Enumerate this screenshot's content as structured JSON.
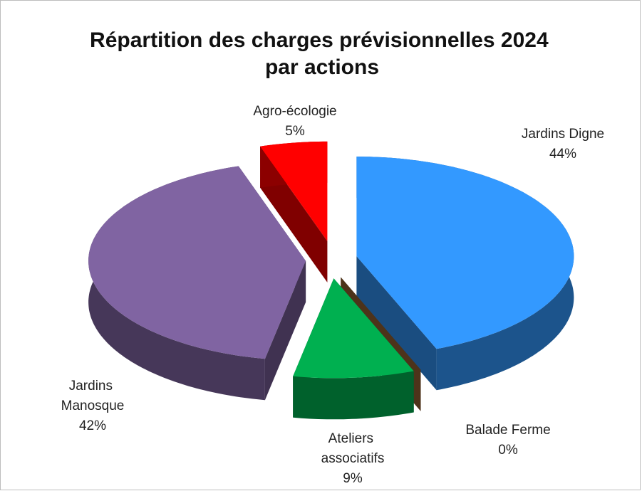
{
  "chart_data": {
    "type": "pie",
    "title": "Répartition des charges prévisionnelles 2024 par actions",
    "categories": [
      "Jardins Digne",
      "Balade Ferme",
      "Ateliers associatifs",
      "Jardins Manosque",
      "Agro-écologie"
    ],
    "values": [
      44,
      0,
      9,
      42,
      5
    ],
    "value_labels": [
      "44%",
      "0%",
      "9%",
      "42%",
      "5%"
    ],
    "colors": [
      "#3399ff",
      "#996633",
      "#00b050",
      "#8064a2",
      "#ff0000"
    ]
  }
}
